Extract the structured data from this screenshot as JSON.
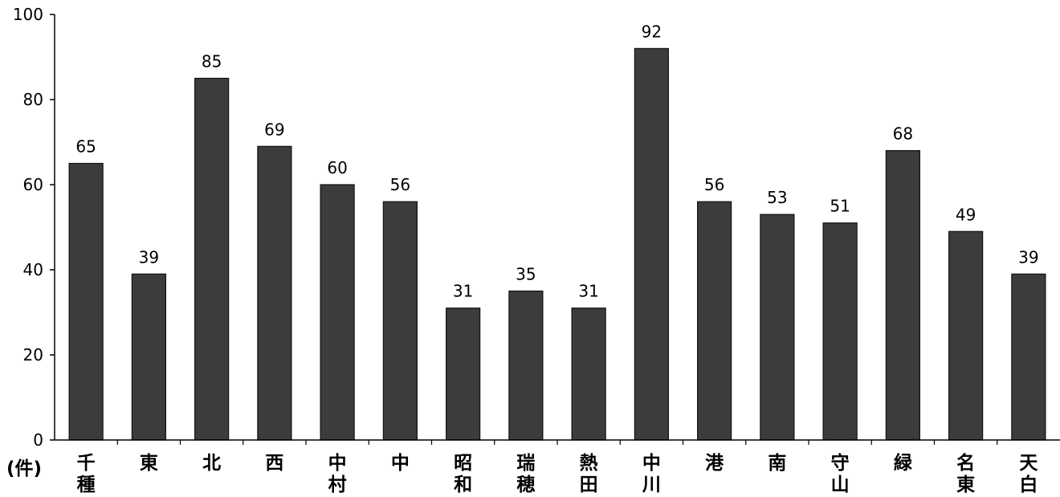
{
  "chart_data": {
    "type": "bar",
    "title": "",
    "xlabel": "",
    "ylabel": "",
    "unit_label": "(件)",
    "ylim": [
      0,
      100
    ],
    "yticks": [
      "0",
      "20",
      "40",
      "60",
      "80",
      "100"
    ],
    "grid": false,
    "categories": [
      "千種",
      "東",
      "北",
      "西",
      "中村",
      "中",
      "昭和",
      "瑞穂",
      "熱田",
      "中川",
      "港",
      "南",
      "守山",
      "緑",
      "名東",
      "天白"
    ],
    "values": [
      65,
      39,
      85,
      69,
      60,
      56,
      31,
      35,
      31,
      92,
      56,
      53,
      51,
      68,
      49,
      39
    ],
    "bar_color": "#3c3c3c"
  }
}
